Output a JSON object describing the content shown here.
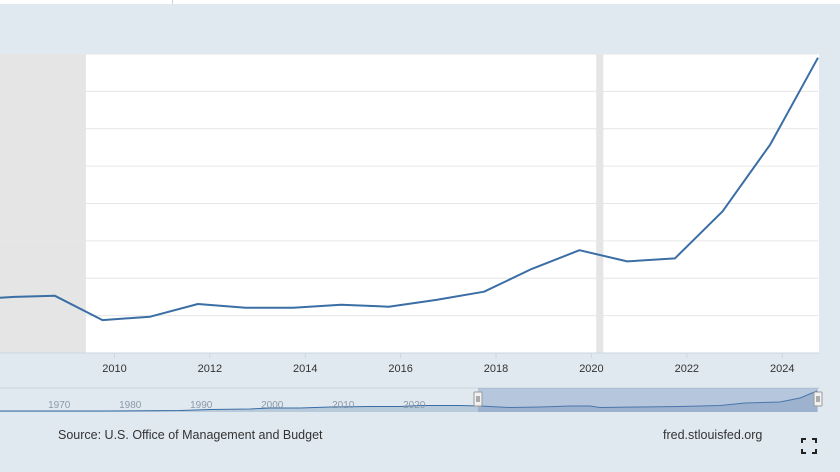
{
  "chart_data": {
    "type": "line",
    "title": "",
    "xlabel": "",
    "ylabel": "",
    "x_ticks": [
      2010,
      2012,
      2014,
      2016,
      2018,
      2020,
      2022,
      2024
    ],
    "xlim": [
      2007.6,
      2024.75
    ],
    "ylim": [
      0,
      8
    ],
    "grid": true,
    "recessions": [
      [
        2007.6,
        2009.4
      ],
      [
        2020.1,
        2020.25
      ]
    ],
    "series": [
      {
        "color": "#3a6ea5",
        "x": [
          2007.6,
          2007.9,
          2008.75,
          2009.75,
          2010.75,
          2011.75,
          2012.75,
          2013.75,
          2014.75,
          2015.75,
          2016.75,
          2017.75,
          2018.75,
          2019.75,
          2020.75,
          2021.75,
          2022.75,
          2023.75,
          2024.75
        ],
        "y": [
          1.48,
          1.5,
          1.53,
          0.88,
          0.97,
          1.31,
          1.21,
          1.21,
          1.29,
          1.24,
          1.42,
          1.64,
          2.25,
          2.75,
          2.45,
          2.53,
          3.79,
          5.58,
          7.9
        ]
      }
    ]
  },
  "navigator": {
    "labels": [
      "1970",
      "1980",
      "1990",
      "2000",
      "2010",
      "2020"
    ],
    "range_start": 2007.6,
    "range_end": 2024.75
  },
  "footer": {
    "source": "Source: U.S. Office of Management and Budget",
    "site": "fred.stlouisfed.org"
  },
  "icons": {
    "fullscreen": "fullscreen-icon"
  }
}
